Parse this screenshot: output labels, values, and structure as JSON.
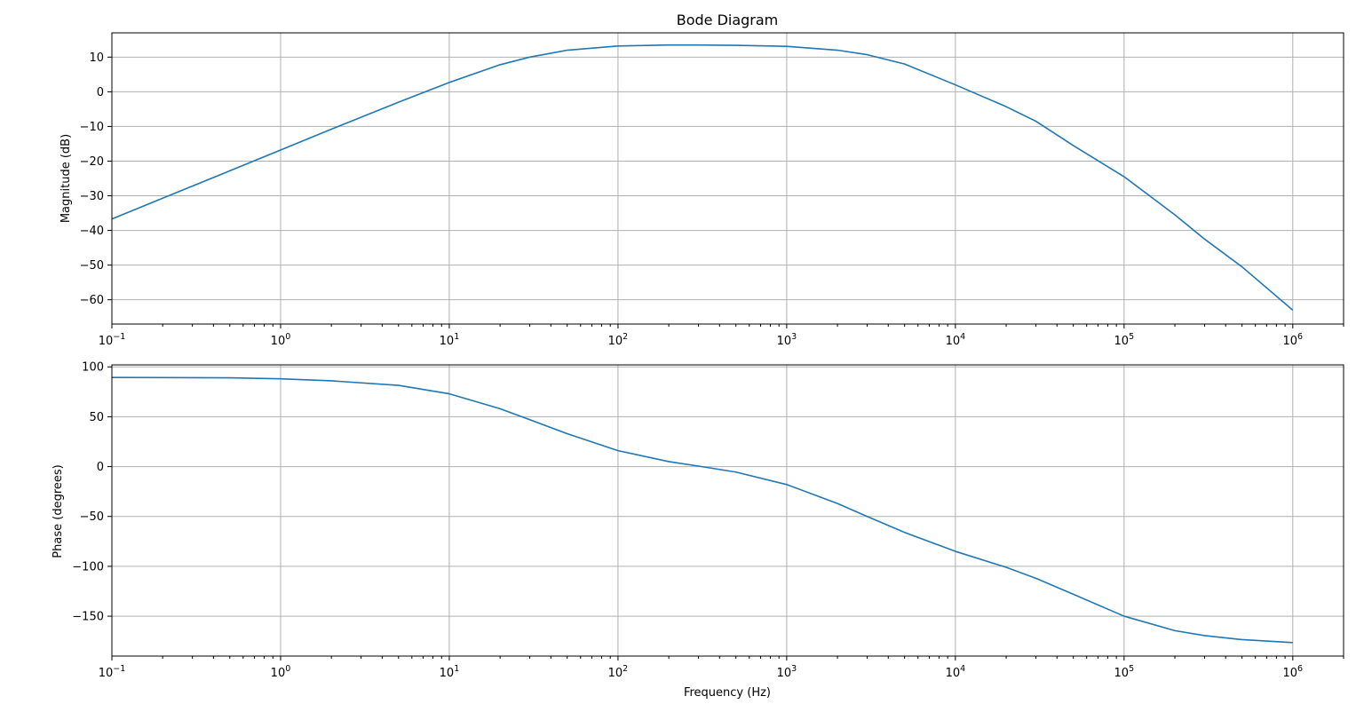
{
  "chart_data": [
    {
      "type": "line",
      "title": "Bode Diagram",
      "xlabel": "",
      "ylabel": "Magnitude (dB)",
      "xscale": "log",
      "xlim": [
        0.1,
        2000000
      ],
      "ylim": [
        -67,
        17
      ],
      "grid": true,
      "x_tick_labels": [
        {
          "base": "10",
          "exp": "−1",
          "value": 0.1
        },
        {
          "base": "10",
          "exp": "0",
          "value": 1
        },
        {
          "base": "10",
          "exp": "1",
          "value": 10
        },
        {
          "base": "10",
          "exp": "2",
          "value": 100
        },
        {
          "base": "10",
          "exp": "3",
          "value": 1000
        },
        {
          "base": "10",
          "exp": "4",
          "value": 10000
        },
        {
          "base": "10",
          "exp": "5",
          "value": 100000
        },
        {
          "base": "10",
          "exp": "6",
          "value": 1000000
        }
      ],
      "y_tick_labels": [
        {
          "label": "10",
          "value": 10
        },
        {
          "label": "0",
          "value": 0
        },
        {
          "label": "−10",
          "value": -10
        },
        {
          "label": "−20",
          "value": -20
        },
        {
          "label": "−30",
          "value": -30
        },
        {
          "label": "−40",
          "value": -40
        },
        {
          "label": "−50",
          "value": -50
        },
        {
          "label": "−60",
          "value": -60
        }
      ],
      "color": "#1f77b4",
      "series": [
        {
          "x": [
            0.1,
            0.2,
            0.5,
            1,
            2,
            5,
            10,
            20,
            30,
            50,
            100,
            200,
            300,
            500,
            1000,
            2000,
            3000,
            5000,
            10000,
            20000,
            30000,
            50000,
            100000,
            200000,
            300000,
            500000,
            1000000
          ],
          "y": [
            -36.7,
            -30.7,
            -22.8,
            -16.8,
            -10.8,
            -3.0,
            2.7,
            7.8,
            10.0,
            12.0,
            13.2,
            13.5,
            13.5,
            13.4,
            13.1,
            12.0,
            10.7,
            8.0,
            2.0,
            -4.3,
            -8.5,
            -15.5,
            -24.5,
            -35.5,
            -42.5,
            -50.5,
            -63.0
          ]
        }
      ]
    },
    {
      "type": "line",
      "title": "",
      "xlabel": "Frequency (Hz)",
      "ylabel": "Phase (degrees)",
      "xscale": "log",
      "xlim": [
        0.1,
        2000000
      ],
      "ylim": [
        -190,
        102
      ],
      "grid": true,
      "x_tick_labels": [
        {
          "base": "10",
          "exp": "−1",
          "value": 0.1
        },
        {
          "base": "10",
          "exp": "0",
          "value": 1
        },
        {
          "base": "10",
          "exp": "1",
          "value": 10
        },
        {
          "base": "10",
          "exp": "2",
          "value": 100
        },
        {
          "base": "10",
          "exp": "3",
          "value": 1000
        },
        {
          "base": "10",
          "exp": "4",
          "value": 10000
        },
        {
          "base": "10",
          "exp": "5",
          "value": 100000
        },
        {
          "base": "10",
          "exp": "6",
          "value": 1000000
        }
      ],
      "y_tick_labels": [
        {
          "label": "100",
          "value": 100
        },
        {
          "label": "50",
          "value": 50
        },
        {
          "label": "0",
          "value": 0
        },
        {
          "label": "−50",
          "value": -50
        },
        {
          "label": "−100",
          "value": -100
        },
        {
          "label": "−150",
          "value": -150
        }
      ],
      "color": "#1f77b4",
      "series": [
        {
          "x": [
            0.1,
            0.2,
            0.5,
            1,
            2,
            5,
            10,
            20,
            30,
            50,
            100,
            200,
            300,
            500,
            1000,
            2000,
            3000,
            5000,
            10000,
            20000,
            30000,
            50000,
            100000,
            200000,
            300000,
            500000,
            1000000
          ],
          "y": [
            89.4,
            89.3,
            89.0,
            88.0,
            86.0,
            81.5,
            73.0,
            58.0,
            47.0,
            33.0,
            16.0,
            5.0,
            0.5,
            -5.5,
            -18.0,
            -37.0,
            -50.0,
            -66.0,
            -85.0,
            -101.0,
            -112.0,
            -128.0,
            -150.0,
            -164.5,
            -169.5,
            -173.5,
            -176.5
          ]
        }
      ]
    }
  ]
}
